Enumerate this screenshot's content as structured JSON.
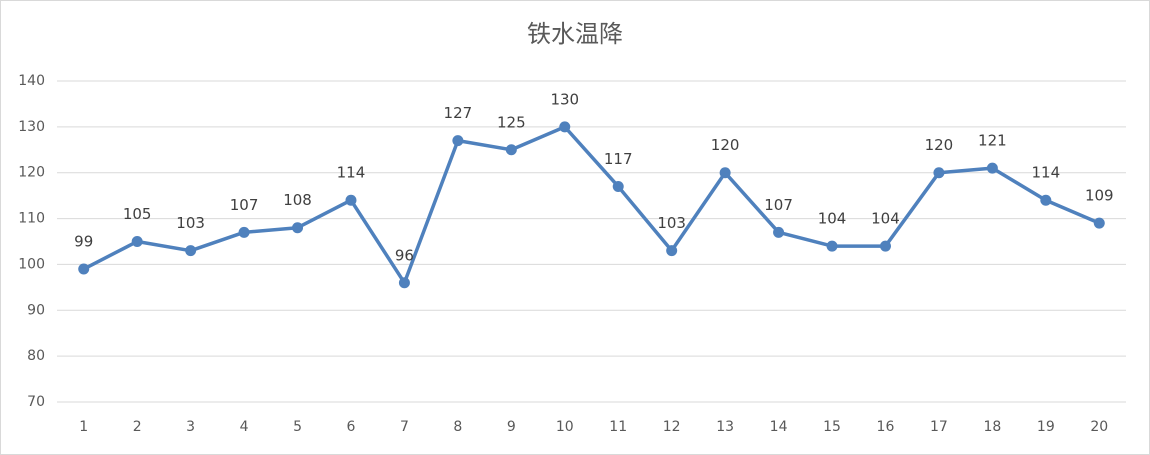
{
  "chart_data": {
    "type": "line",
    "title": "铁水温降",
    "categories": [
      "1",
      "2",
      "3",
      "4",
      "5",
      "6",
      "7",
      "8",
      "9",
      "10",
      "11",
      "12",
      "13",
      "14",
      "15",
      "16",
      "17",
      "18",
      "19",
      "20"
    ],
    "values": [
      99,
      105,
      103,
      107,
      108,
      114,
      96,
      127,
      125,
      130,
      117,
      103,
      120,
      107,
      104,
      104,
      120,
      121,
      114,
      109
    ],
    "color": "#4f81bd",
    "ylim": [
      70,
      140
    ],
    "yticks": [
      70,
      80,
      90,
      100,
      110,
      120,
      130,
      140
    ],
    "grid": true
  }
}
